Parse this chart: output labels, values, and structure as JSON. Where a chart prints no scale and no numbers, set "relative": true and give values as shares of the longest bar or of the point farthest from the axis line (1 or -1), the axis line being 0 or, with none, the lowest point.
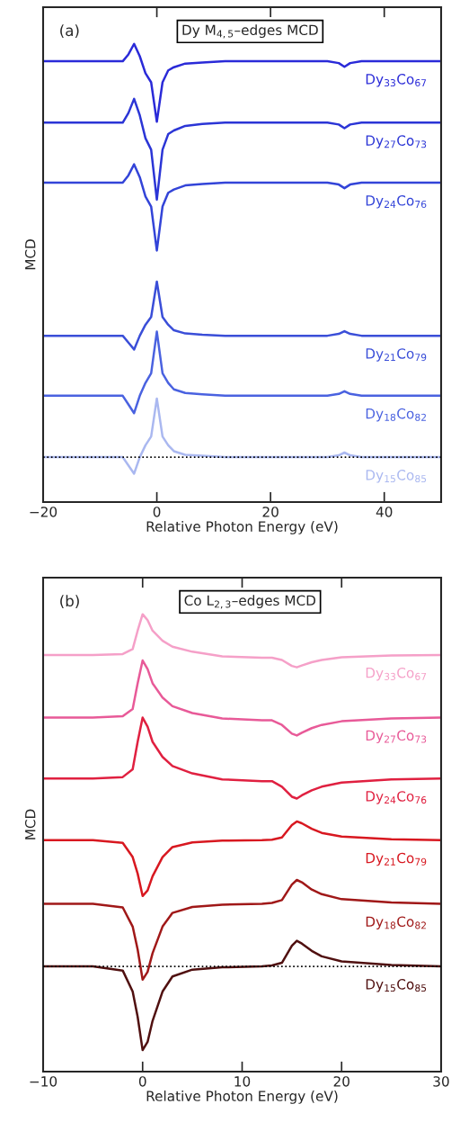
{
  "chart_data": [
    {
      "type": "line",
      "relative": true,
      "title": "Dy M$_{4,5}$–edges MCD",
      "xlabel": "Relative Photon Energy (eV)",
      "ylabel": "MCD",
      "annotations": [
        "(a)"
      ],
      "x": [
        -20,
        -10,
        -6,
        -5,
        -4,
        -3,
        -2,
        -1,
        0,
        1,
        2,
        3,
        5,
        8,
        12,
        20,
        30,
        32,
        33,
        34,
        36,
        50
      ],
      "xlim": [
        -20,
        50
      ],
      "xticks": [
        {
          "value": -20,
          "label": "−20"
        },
        0,
        20,
        40
      ],
      "grid": false,
      "legend": false,
      "line_style": "solid",
      "marker": "none",
      "ref_lines": [
        {
          "axis": "y",
          "value": 0.098,
          "line_style": "dotted",
          "color": "#000000"
        }
      ],
      "series": [
        {
          "name": "Dy$_{33}$Co$_{67}$",
          "color": "#2a2ad8",
          "values": [
            0.962,
            0.962,
            0.962,
            0.977,
            1.0,
            0.973,
            0.936,
            0.916,
            0.83,
            0.916,
            0.942,
            0.949,
            0.957,
            0.959,
            0.962,
            0.962,
            0.962,
            0.958,
            0.95,
            0.958,
            0.962,
            0.962
          ]
        },
        {
          "name": "Dy$_{27}$Co$_{73}$",
          "color": "#2b35d6",
          "values": [
            0.828,
            0.828,
            0.828,
            0.849,
            0.88,
            0.844,
            0.794,
            0.769,
            0.66,
            0.769,
            0.803,
            0.811,
            0.821,
            0.825,
            0.828,
            0.828,
            0.828,
            0.824,
            0.816,
            0.824,
            0.828,
            0.828
          ]
        },
        {
          "name": "Dy$_{24}$Co$_{76}$",
          "color": "#3344d8",
          "values": [
            0.697,
            0.697,
            0.697,
            0.713,
            0.737,
            0.709,
            0.667,
            0.645,
            0.549,
            0.645,
            0.675,
            0.682,
            0.691,
            0.694,
            0.697,
            0.697,
            0.697,
            0.693,
            0.685,
            0.693,
            0.697,
            0.697
          ]
        },
        {
          "name": "Dy$_{21}$Co$_{79}$",
          "color": "#3a4ed8",
          "values": [
            0.363,
            0.363,
            0.363,
            0.348,
            0.333,
            0.363,
            0.387,
            0.404,
            0.481,
            0.404,
            0.387,
            0.375,
            0.368,
            0.365,
            0.363,
            0.363,
            0.363,
            0.367,
            0.373,
            0.367,
            0.363,
            0.363
          ]
        },
        {
          "name": "Dy$_{18}$Co$_{82}$",
          "color": "#4a62e0",
          "values": [
            0.232,
            0.232,
            0.232,
            0.213,
            0.194,
            0.232,
            0.26,
            0.281,
            0.372,
            0.281,
            0.26,
            0.246,
            0.238,
            0.235,
            0.232,
            0.232,
            0.232,
            0.236,
            0.242,
            0.236,
            0.232,
            0.232
          ]
        },
        {
          "name": "Dy$_{15}$Co$_{85}$",
          "color": "#aab8f0",
          "values": [
            0.098,
            0.098,
            0.098,
            0.08,
            0.062,
            0.098,
            0.124,
            0.143,
            0.226,
            0.143,
            0.124,
            0.111,
            0.103,
            0.101,
            0.098,
            0.098,
            0.098,
            0.102,
            0.108,
            0.102,
            0.098,
            0.098
          ]
        }
      ]
    },
    {
      "type": "line",
      "relative": true,
      "title": "Co L$_{2,3}$–edges MCD",
      "xlabel": "Relative Photon Energy (eV)",
      "ylabel": "MCD",
      "annotations": [
        "(b)"
      ],
      "x": [
        -10,
        -5,
        -2,
        -1,
        -0.5,
        0,
        0.5,
        1,
        2,
        3,
        5,
        8,
        12,
        13,
        14,
        15,
        15.5,
        16,
        17,
        18,
        20,
        25,
        30
      ],
      "xlim": [
        -10,
        30
      ],
      "xticks": [
        {
          "value": -10,
          "label": "−10"
        },
        0,
        10,
        20,
        30
      ],
      "grid": false,
      "legend": false,
      "line_style": "solid",
      "marker": "none",
      "ref_lines": [
        {
          "axis": "y",
          "value": 0.23,
          "line_style": "dotted",
          "color": "#000000"
        }
      ],
      "series": [
        {
          "name": "Dy$_{33}$Co$_{67}$",
          "color": "#f5a0c8",
          "values": [
            0.911,
            0.911,
            0.913,
            0.924,
            0.964,
            1.0,
            0.987,
            0.964,
            0.942,
            0.929,
            0.918,
            0.908,
            0.905,
            0.905,
            0.9,
            0.887,
            0.884,
            0.888,
            0.895,
            0.9,
            0.906,
            0.91,
            0.911
          ]
        },
        {
          "name": "Dy$_{27}$Co$_{73}$",
          "color": "#e85a98",
          "values": [
            0.774,
            0.774,
            0.777,
            0.793,
            0.849,
            0.899,
            0.88,
            0.849,
            0.818,
            0.799,
            0.784,
            0.772,
            0.768,
            0.768,
            0.758,
            0.739,
            0.735,
            0.741,
            0.751,
            0.758,
            0.766,
            0.772,
            0.774
          ]
        },
        {
          "name": "Dy$_{24}$Co$_{76}$",
          "color": "#e02040",
          "values": [
            0.641,
            0.641,
            0.644,
            0.661,
            0.721,
            0.774,
            0.754,
            0.721,
            0.688,
            0.668,
            0.652,
            0.639,
            0.635,
            0.635,
            0.623,
            0.601,
            0.597,
            0.604,
            0.615,
            0.623,
            0.632,
            0.639,
            0.641
          ]
        },
        {
          "name": "Dy$_{21}$Co$_{79}$",
          "color": "#d81820",
          "values": [
            0.506,
            0.506,
            0.5,
            0.469,
            0.433,
            0.384,
            0.396,
            0.427,
            0.469,
            0.491,
            0.501,
            0.505,
            0.506,
            0.507,
            0.512,
            0.539,
            0.547,
            0.543,
            0.531,
            0.522,
            0.514,
            0.508,
            0.506
          ]
        },
        {
          "name": "Dy$_{18}$Co$_{82}$",
          "color": "#a01818",
          "values": [
            0.367,
            0.367,
            0.359,
            0.317,
            0.267,
            0.201,
            0.218,
            0.259,
            0.317,
            0.347,
            0.36,
            0.365,
            0.367,
            0.369,
            0.375,
            0.409,
            0.419,
            0.414,
            0.398,
            0.388,
            0.377,
            0.37,
            0.367
          ]
        },
        {
          "name": "Dy$_{15}$Co$_{85}$",
          "color": "#501010",
          "values": [
            0.23,
            0.23,
            0.221,
            0.175,
            0.12,
            0.047,
            0.065,
            0.111,
            0.175,
            0.208,
            0.223,
            0.228,
            0.23,
            0.232,
            0.238,
            0.275,
            0.286,
            0.28,
            0.264,
            0.252,
            0.241,
            0.233,
            0.23
          ]
        }
      ]
    }
  ]
}
